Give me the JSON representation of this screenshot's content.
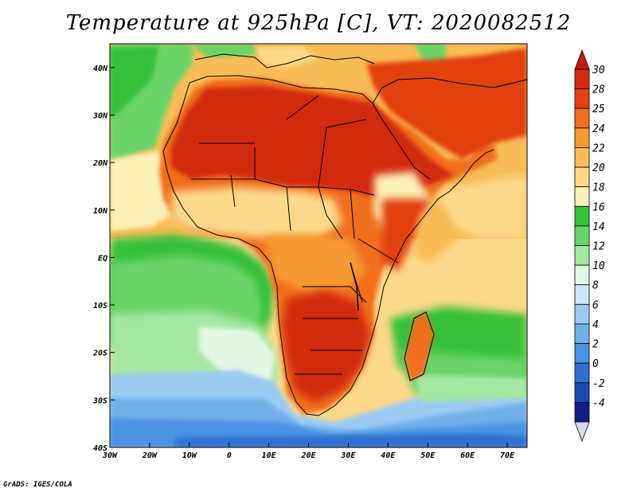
{
  "title": "Temperature at 925hPa [C], VT: 2020082512",
  "credit": "GrADS: IGES/COLA",
  "map": {
    "lon_range": [
      -30,
      75
    ],
    "lat_range": [
      -40,
      45
    ],
    "x_ticks": [
      {
        "lon": -30,
        "label": "30W"
      },
      {
        "lon": -20,
        "label": "20W"
      },
      {
        "lon": -10,
        "label": "10W"
      },
      {
        "lon": 0,
        "label": "0"
      },
      {
        "lon": 10,
        "label": "10E"
      },
      {
        "lon": 20,
        "label": "20E"
      },
      {
        "lon": 30,
        "label": "30E"
      },
      {
        "lon": 40,
        "label": "40E"
      },
      {
        "lon": 50,
        "label": "50E"
      },
      {
        "lon": 60,
        "label": "60E"
      },
      {
        "lon": 70,
        "label": "70E"
      }
    ],
    "y_ticks": [
      {
        "lat": 40,
        "label": "40N"
      },
      {
        "lat": 30,
        "label": "30N"
      },
      {
        "lat": 20,
        "label": "20N"
      },
      {
        "lat": 10,
        "label": "10N"
      },
      {
        "lat": 0,
        "label": "EQ"
      },
      {
        "lat": -10,
        "label": "10S"
      },
      {
        "lat": -20,
        "label": "20S"
      },
      {
        "lat": -30,
        "label": "30S"
      },
      {
        "lat": -40,
        "label": "40S"
      }
    ]
  },
  "colorbar": {
    "levels": [
      {
        "label": "30",
        "color": "#d22a0f"
      },
      {
        "label": "28",
        "color": "#e2410f"
      },
      {
        "label": "25",
        "color": "#f06e1e"
      },
      {
        "label": "24",
        "color": "#f59a32"
      },
      {
        "label": "22",
        "color": "#f8bb55"
      },
      {
        "label": "20",
        "color": "#fcd98a"
      },
      {
        "label": "18",
        "color": "#fdf0b6"
      },
      {
        "label": "16",
        "color": "#35c03a"
      },
      {
        "label": "14",
        "color": "#6bd468"
      },
      {
        "label": "12",
        "color": "#a6e8a2"
      },
      {
        "label": "10",
        "color": "#e2f7e2"
      },
      {
        "label": "8",
        "color": "#c9e6fa"
      },
      {
        "label": "6",
        "color": "#9ccbf2"
      },
      {
        "label": "4",
        "color": "#6fb0ea"
      },
      {
        "label": "2",
        "color": "#4c92e2"
      },
      {
        "label": "0",
        "color": "#2f6fd2"
      },
      {
        "label": "-2",
        "color": "#1c48b6"
      },
      {
        "label": "-4",
        "color": "#111e82"
      }
    ],
    "over_color": "#c8190b",
    "under_color": "#d8d8f5"
  }
}
